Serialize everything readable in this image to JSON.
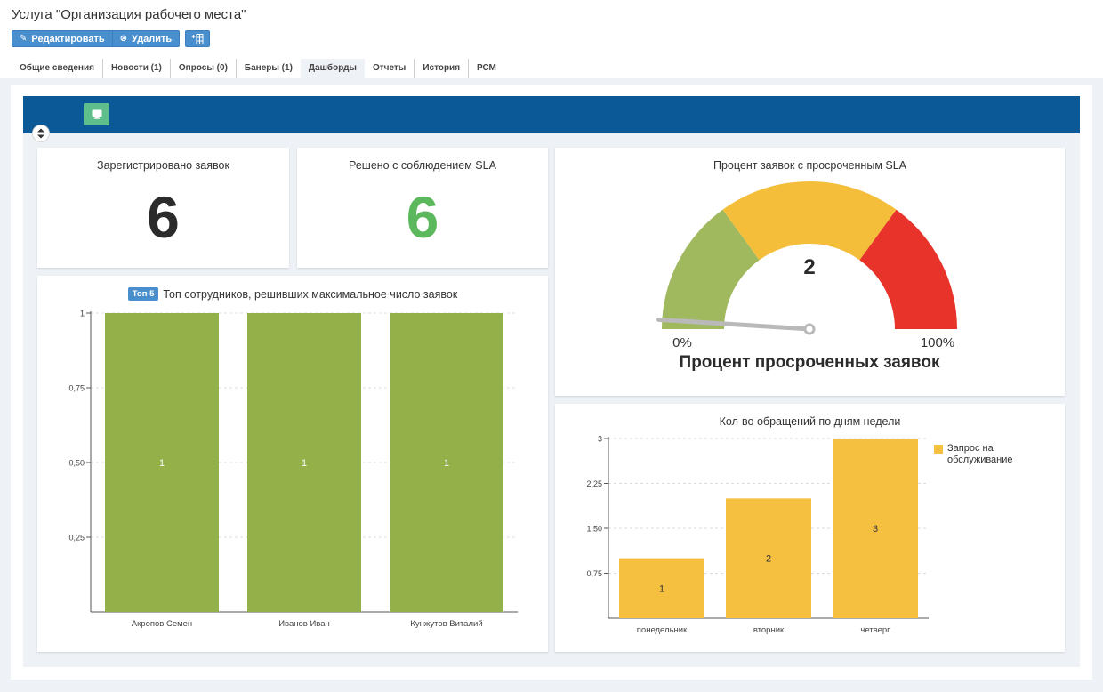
{
  "page": {
    "title": "Услуга \"Организация рабочего места\""
  },
  "toolbar": {
    "edit_label": "Редактировать",
    "delete_label": "Удалить"
  },
  "tabs": [
    {
      "label": "Общие сведения",
      "active": false
    },
    {
      "label": "Новости (1)",
      "active": false
    },
    {
      "label": "Опросы (0)",
      "active": false
    },
    {
      "label": "Банеры (1)",
      "active": false
    },
    {
      "label": "Дашборды",
      "active": true
    },
    {
      "label": "Отчеты",
      "active": false
    },
    {
      "label": "История",
      "active": false
    },
    {
      "label": "РСМ",
      "active": false
    }
  ],
  "colors": {
    "header_blue": "#0b5a97",
    "accent_button": "#4a8fcd",
    "monitor_green": "#5fbf8c",
    "kpi_dark": "#2b2b2b",
    "kpi_green": "#5cb85c",
    "bar_green": "#94b048",
    "bar_yellow": "#f5c040",
    "gauge_green": "#a0b85e",
    "gauge_yellow": "#f4bd3a",
    "gauge_red": "#e8332a"
  },
  "kpis": {
    "registered": {
      "title": "Зарегистрировано заявок",
      "value": "6"
    },
    "sla_resolved": {
      "title": "Решено с соблюдением SLA",
      "value": "6"
    }
  },
  "gauge": {
    "title": "Процент заявок с просроченным SLA",
    "value": 2,
    "value_label": "2",
    "min": 0,
    "max": 100,
    "min_label": "0%",
    "max_label": "100%",
    "caption": "Процент просроченных заявок"
  },
  "chart_data": [
    {
      "type": "bar",
      "badge": "Топ 5",
      "title": "Топ сотрудников, решивших максимальное число заявок",
      "categories": [
        "Акропов Семен",
        "Иванов Иван",
        "Кунжутов Виталий"
      ],
      "values": [
        1,
        1,
        1
      ],
      "value_labels": [
        "1",
        "1",
        "1"
      ],
      "ylim": [
        0,
        1
      ],
      "yticks": [
        0.25,
        0.5,
        0.75,
        1
      ],
      "ytick_labels": [
        "0,25",
        "0,50",
        "0,75",
        "1"
      ],
      "grid": true
    },
    {
      "type": "bar",
      "title": "Кол-во обращений по дням недели",
      "categories": [
        "понедельник",
        "вторник",
        "четверг"
      ],
      "series": [
        {
          "name": "Запрос на обслуживание",
          "values": [
            1,
            2,
            3
          ]
        }
      ],
      "value_labels": [
        "1",
        "2",
        "3"
      ],
      "ylim": [
        0,
        3
      ],
      "yticks": [
        0.75,
        1.5,
        2.25,
        3
      ],
      "ytick_labels": [
        "0,75",
        "1,50",
        "2,25",
        "3"
      ],
      "legend": "right",
      "grid": true
    }
  ]
}
